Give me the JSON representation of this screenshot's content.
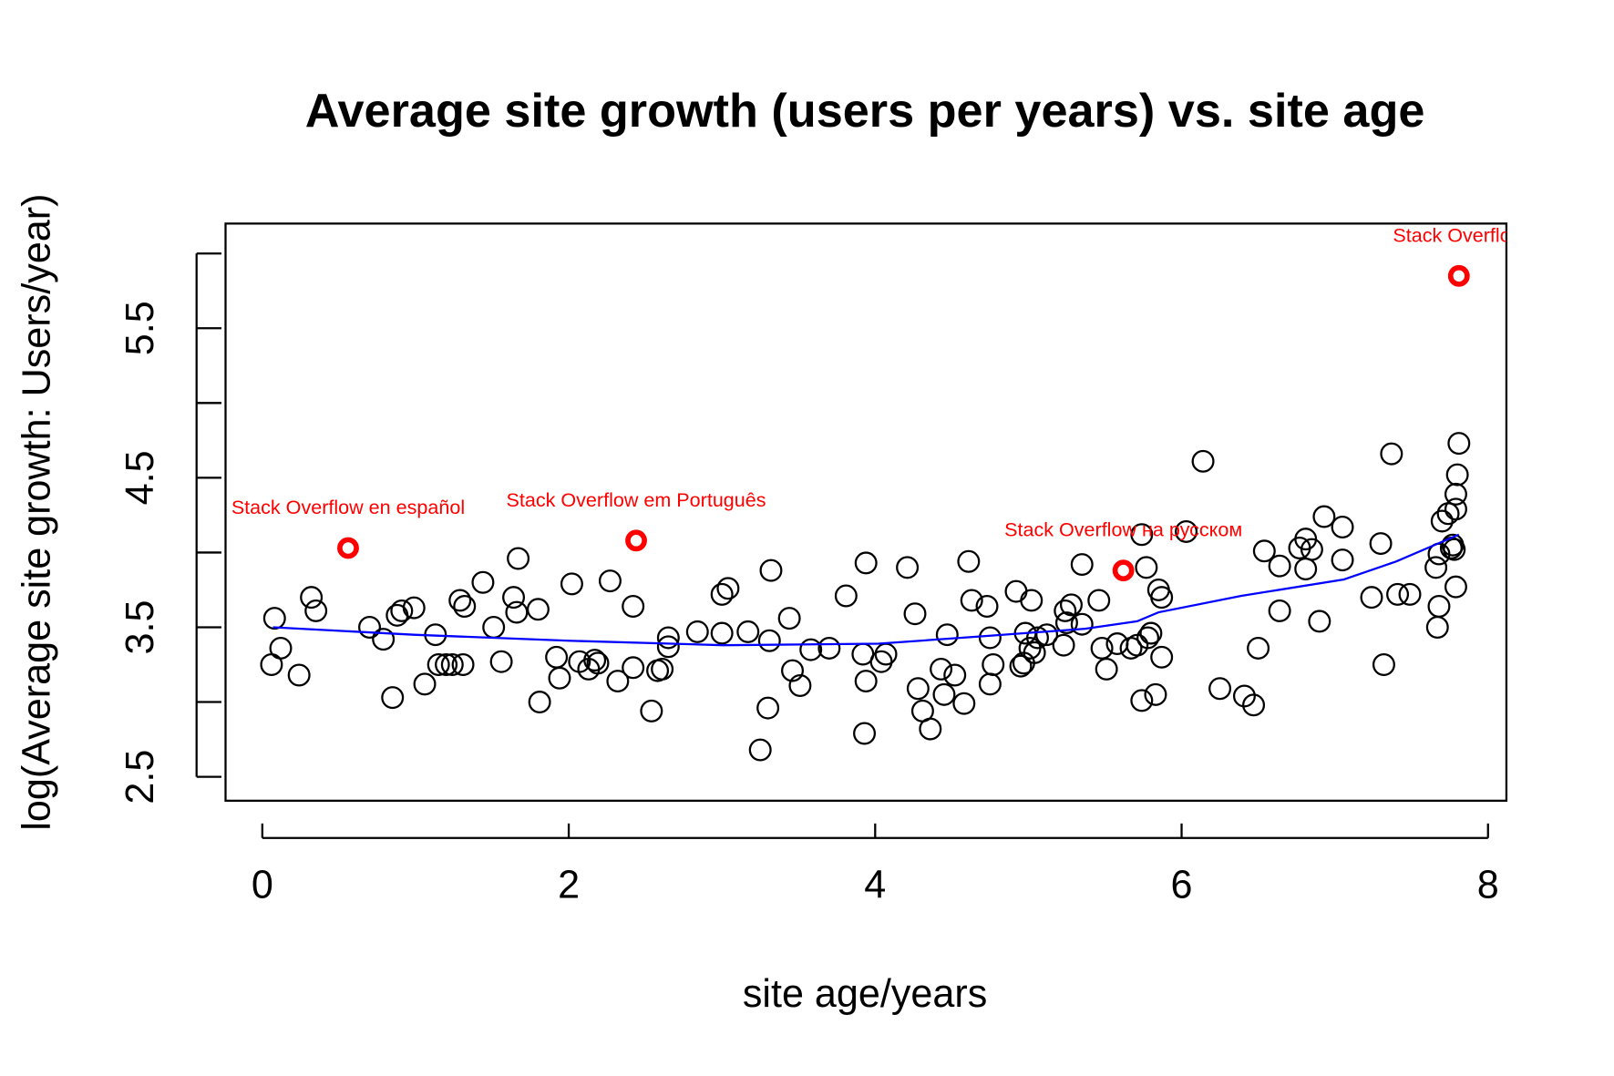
{
  "chart_data": {
    "type": "scatter",
    "title": "Average site growth (users per years) vs. site age",
    "xlabel": "site age/years",
    "ylabel": "log(Average site growth: Users/year)",
    "xlim": [
      -0.24,
      8.12
    ],
    "ylim": [
      2.34,
      6.2
    ],
    "xticks": [
      0,
      2,
      4,
      6,
      8
    ],
    "yticks": [
      2.5,
      3.5,
      4.5,
      5.5
    ],
    "yticks_unlabeled": [
      3,
      4,
      5,
      6
    ],
    "series": [
      {
        "kind": "points",
        "color": "#000000",
        "x": [
          0.08,
          0.06,
          0.12,
          0.24,
          0.32,
          0.35,
          0.7,
          0.79,
          0.85,
          0.88,
          0.91,
          0.99,
          1.06,
          1.13,
          1.15,
          1.2,
          1.24,
          1.29,
          1.31,
          1.32,
          1.44,
          1.51,
          1.56,
          1.64,
          1.66,
          1.67,
          1.8,
          1.81,
          1.92,
          1.94,
          2.02,
          2.07,
          2.13,
          2.17,
          2.19,
          2.27,
          2.32,
          2.42,
          2.42,
          2.54,
          2.58,
          2.61,
          2.65,
          2.65,
          2.84,
          3.0,
          3.0,
          3.04,
          3.17,
          3.25,
          3.3,
          3.31,
          3.32,
          3.44,
          3.46,
          3.51,
          3.58,
          3.7,
          3.81,
          3.92,
          3.93,
          3.94,
          3.94,
          4.04,
          4.07,
          4.21,
          4.26,
          4.28,
          4.31,
          4.36,
          4.43,
          4.45,
          4.47,
          4.52,
          4.58,
          4.61,
          4.63,
          4.73,
          4.75,
          4.75,
          4.77,
          4.92,
          4.95,
          4.97,
          4.98,
          5.01,
          5.02,
          5.04,
          5.06,
          5.12,
          5.23,
          5.24,
          5.25,
          5.28,
          5.35,
          5.35,
          5.46,
          5.48,
          5.51,
          5.58,
          5.67,
          5.71,
          5.74,
          5.74,
          5.77,
          5.78,
          5.8,
          5.83,
          5.85,
          5.87,
          5.87,
          6.03,
          6.14,
          6.25,
          6.41,
          6.47,
          6.5,
          6.54,
          6.64,
          6.64,
          6.77,
          6.81,
          6.81,
          6.85,
          6.9,
          6.93,
          7.05,
          7.05,
          7.24,
          7.3,
          7.32,
          7.37,
          7.41,
          7.49,
          7.66,
          7.67,
          7.68,
          7.68,
          7.7,
          7.74,
          7.76,
          7.77,
          7.78,
          7.79,
          7.79,
          7.79,
          7.8,
          7.81
        ],
        "values": [
          3.56,
          3.25,
          3.36,
          3.18,
          3.7,
          3.61,
          3.5,
          3.42,
          3.03,
          3.58,
          3.61,
          3.63,
          3.12,
          3.45,
          3.25,
          3.25,
          3.25,
          3.68,
          3.25,
          3.64,
          3.8,
          3.5,
          3.27,
          3.7,
          3.6,
          3.96,
          3.62,
          3.0,
          3.3,
          3.16,
          3.79,
          3.27,
          3.22,
          3.28,
          3.26,
          3.81,
          3.14,
          3.64,
          3.23,
          2.94,
          3.21,
          3.22,
          3.43,
          3.37,
          3.47,
          3.46,
          3.72,
          3.76,
          3.47,
          2.68,
          2.96,
          3.41,
          3.88,
          3.56,
          3.21,
          3.11,
          3.35,
          3.36,
          3.71,
          3.32,
          2.79,
          3.14,
          3.93,
          3.27,
          3.32,
          3.9,
          3.59,
          3.09,
          2.94,
          2.82,
          3.22,
          3.05,
          3.45,
          3.18,
          2.99,
          3.94,
          3.68,
          3.64,
          3.12,
          3.43,
          3.25,
          3.74,
          3.24,
          3.26,
          3.46,
          3.36,
          3.68,
          3.33,
          3.43,
          3.45,
          3.38,
          3.61,
          3.53,
          3.65,
          3.92,
          3.52,
          3.68,
          3.36,
          3.22,
          3.39,
          3.36,
          3.38,
          3.01,
          4.12,
          3.9,
          3.43,
          3.46,
          3.05,
          3.75,
          3.7,
          3.3,
          4.14,
          4.61,
          3.09,
          3.04,
          2.98,
          3.36,
          4.01,
          3.91,
          3.61,
          4.03,
          4.09,
          3.89,
          4.02,
          3.54,
          4.24,
          4.17,
          3.95,
          3.7,
          4.06,
          3.25,
          4.66,
          3.72,
          3.72,
          3.9,
          3.5,
          3.64,
          3.99,
          4.21,
          4.26,
          4.03,
          4.05,
          4.02,
          3.77,
          4.29,
          4.39,
          4.52,
          4.73
        ]
      },
      {
        "kind": "highlight",
        "color": "#ff0000",
        "x": [
          0.56,
          2.44,
          5.62,
          7.81
        ],
        "values": [
          4.03,
          4.08,
          3.88,
          5.85
        ],
        "labels": [
          "Stack Overflow en español",
          "Stack Overflow em Português",
          "Stack Overflow на русском",
          "Stack Overflow"
        ]
      },
      {
        "kind": "line",
        "color": "#0000ff",
        "x": [
          0.07,
          0.99,
          2.0,
          3.01,
          4.02,
          4.7,
          5.37,
          5.71,
          5.85,
          6.39,
          7.06,
          7.4,
          7.81
        ],
        "values": [
          3.5,
          3.45,
          3.41,
          3.38,
          3.39,
          3.44,
          3.49,
          3.54,
          3.6,
          3.71,
          3.82,
          3.94,
          4.12
        ]
      }
    ]
  }
}
